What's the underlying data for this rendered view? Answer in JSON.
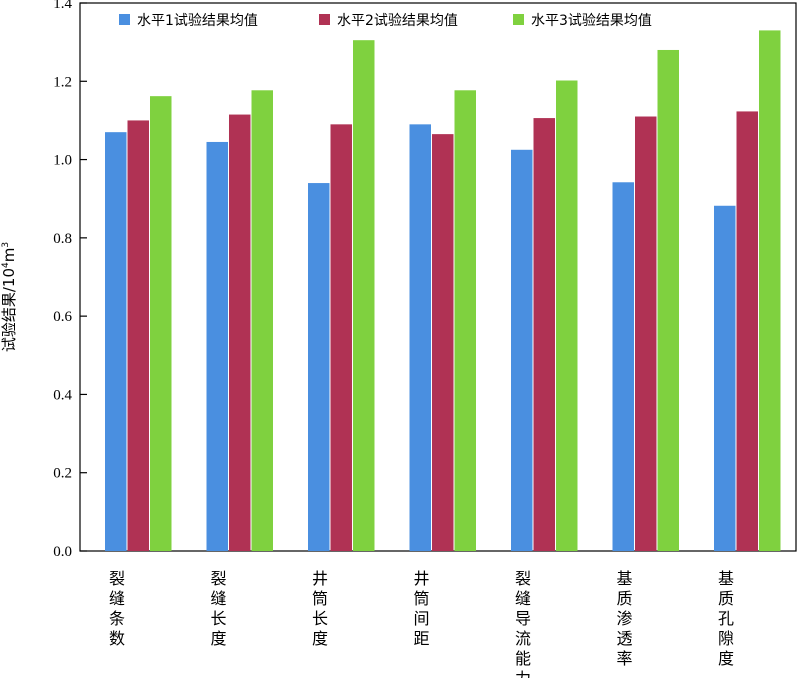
{
  "chart_data": {
    "type": "bar",
    "categories": [
      "裂缝条数",
      "裂缝长度",
      "井筒长度",
      "井筒间距",
      "裂缝导流能力",
      "基质渗透率",
      "基质孔隙度"
    ],
    "series": [
      {
        "name": "水平1试验结果均值",
        "color": "#4a8fe0",
        "values": [
          1.07,
          1.045,
          0.94,
          1.09,
          1.025,
          0.942,
          0.882
        ]
      },
      {
        "name": "水平2试验结果均值",
        "color": "#b03254",
        "values": [
          1.1,
          1.115,
          1.09,
          1.065,
          1.106,
          1.11,
          1.123
        ]
      },
      {
        "name": "水平3试验结果均值",
        "color": "#7fd13f",
        "values": [
          1.162,
          1.177,
          1.305,
          1.177,
          1.202,
          1.28,
          1.33
        ]
      }
    ],
    "ylabel": {
      "main": "试验结果/10",
      "exp1": "4",
      "unit": "m",
      "exp2": "3"
    },
    "ylim": [
      0,
      1.4
    ],
    "yticks": [
      "0.0",
      "0.2",
      "0.4",
      "0.6",
      "0.8",
      "1.0",
      "1.2",
      "1.4"
    ],
    "grid": false,
    "legend_position": "top"
  }
}
